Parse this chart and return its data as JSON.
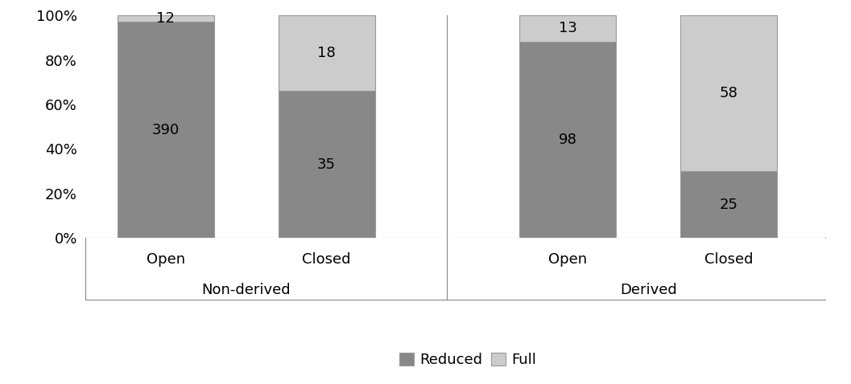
{
  "groups": [
    "Non-derived",
    "Derived"
  ],
  "bars": [
    "Open",
    "Closed",
    "Open",
    "Closed"
  ],
  "reduced_counts": [
    390,
    35,
    98,
    25
  ],
  "full_counts": [
    12,
    18,
    13,
    58
  ],
  "reduced_color": "#888888",
  "full_color": "#cccccc",
  "bar_width": 0.6,
  "ylim": [
    0,
    1.0
  ],
  "yticks": [
    0.0,
    0.2,
    0.4,
    0.6,
    0.8,
    1.0
  ],
  "yticklabels": [
    "0%",
    "20%",
    "40%",
    "60%",
    "80%",
    "100%"
  ],
  "legend_labels": [
    "Reduced",
    "Full"
  ],
  "background_color": "#ffffff",
  "edgecolor": "#999999",
  "fontsize": 13,
  "label_fontsize": 13,
  "group_fontsize": 13
}
